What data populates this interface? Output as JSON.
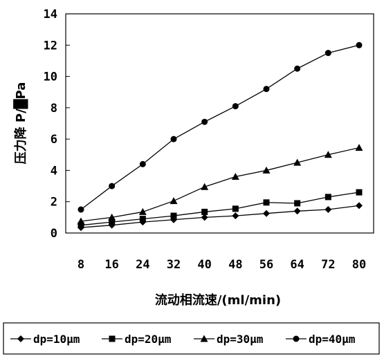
{
  "chart_data": {
    "type": "line",
    "title": "",
    "xlabel": "流动相流速/(ml/min)",
    "ylabel": "压力降 P/█Pa",
    "x": [
      8,
      16,
      24,
      32,
      40,
      48,
      56,
      64,
      72,
      80
    ],
    "ylim": [
      0,
      14
    ],
    "yticks": [
      0,
      2,
      4,
      6,
      8,
      10,
      12,
      14
    ],
    "grid": false,
    "legend_position": "bottom",
    "series": [
      {
        "name": "dp=10μm",
        "marker": "diamond",
        "values": [
          0.35,
          0.5,
          0.7,
          0.85,
          1.0,
          1.1,
          1.25,
          1.4,
          1.5,
          1.75
        ]
      },
      {
        "name": "dp=20μm",
        "marker": "square",
        "values": [
          0.5,
          0.7,
          0.9,
          1.1,
          1.35,
          1.55,
          1.95,
          1.9,
          2.3,
          2.6
        ]
      },
      {
        "name": "dp=30μm",
        "marker": "triangle",
        "values": [
          0.75,
          1.0,
          1.35,
          2.05,
          2.95,
          3.6,
          4.0,
          4.5,
          5.0,
          5.45
        ]
      },
      {
        "name": "dp=40μm",
        "marker": "circle",
        "values": [
          1.5,
          3.0,
          4.4,
          6.0,
          7.1,
          8.1,
          9.2,
          10.5,
          11.5,
          12.0
        ]
      }
    ]
  }
}
